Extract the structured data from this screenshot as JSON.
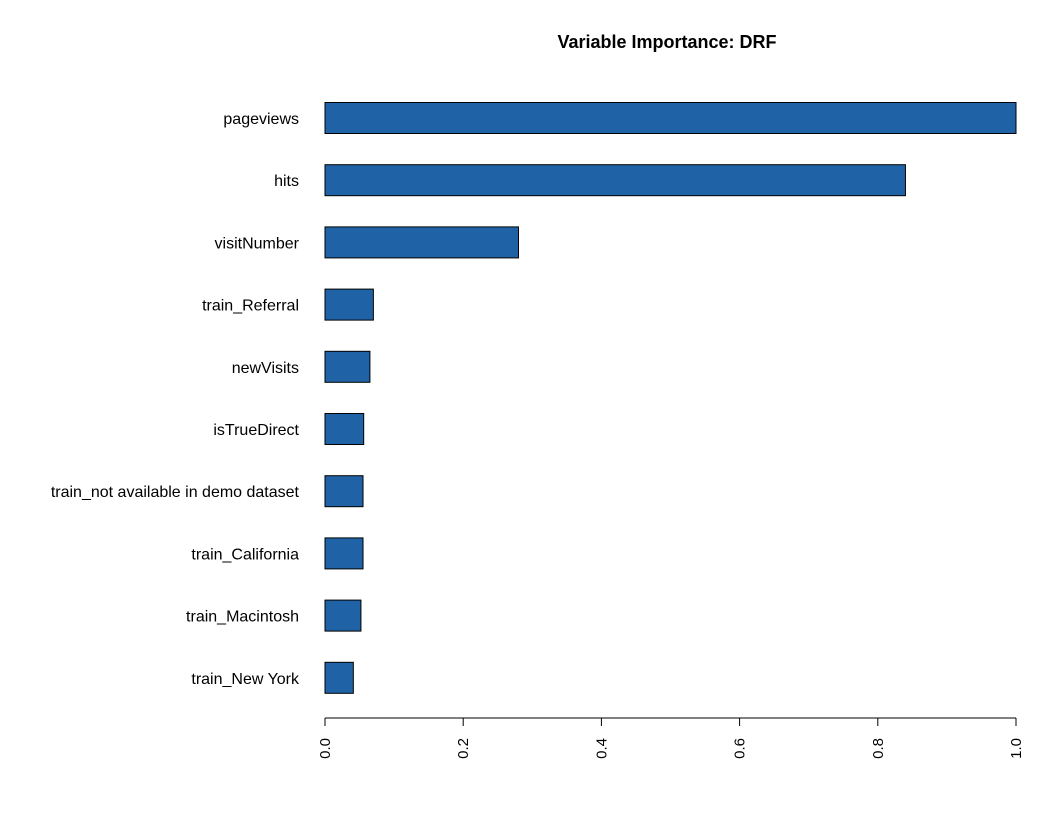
{
  "chart_data": {
    "type": "bar",
    "orientation": "horizontal",
    "title": "Variable Importance: DRF",
    "xlabel": "",
    "ylabel": "",
    "categories": [
      "pageviews",
      "hits",
      "visitNumber",
      "train_Referral",
      "newVisits",
      "isTrueDirect",
      "train_not available in demo dataset",
      "train_California",
      "train_Macintosh",
      "train_New York"
    ],
    "values": [
      1.0,
      0.84,
      0.28,
      0.07,
      0.065,
      0.056,
      0.055,
      0.055,
      0.052,
      0.041
    ],
    "xlim": [
      0,
      1
    ],
    "xticks": [
      "0.0",
      "0.2",
      "0.4",
      "0.6",
      "0.8",
      "1.0"
    ],
    "grid": false,
    "legend": "none",
    "bar_color": "#1f63a6",
    "bar_edge_color": "#000000"
  }
}
